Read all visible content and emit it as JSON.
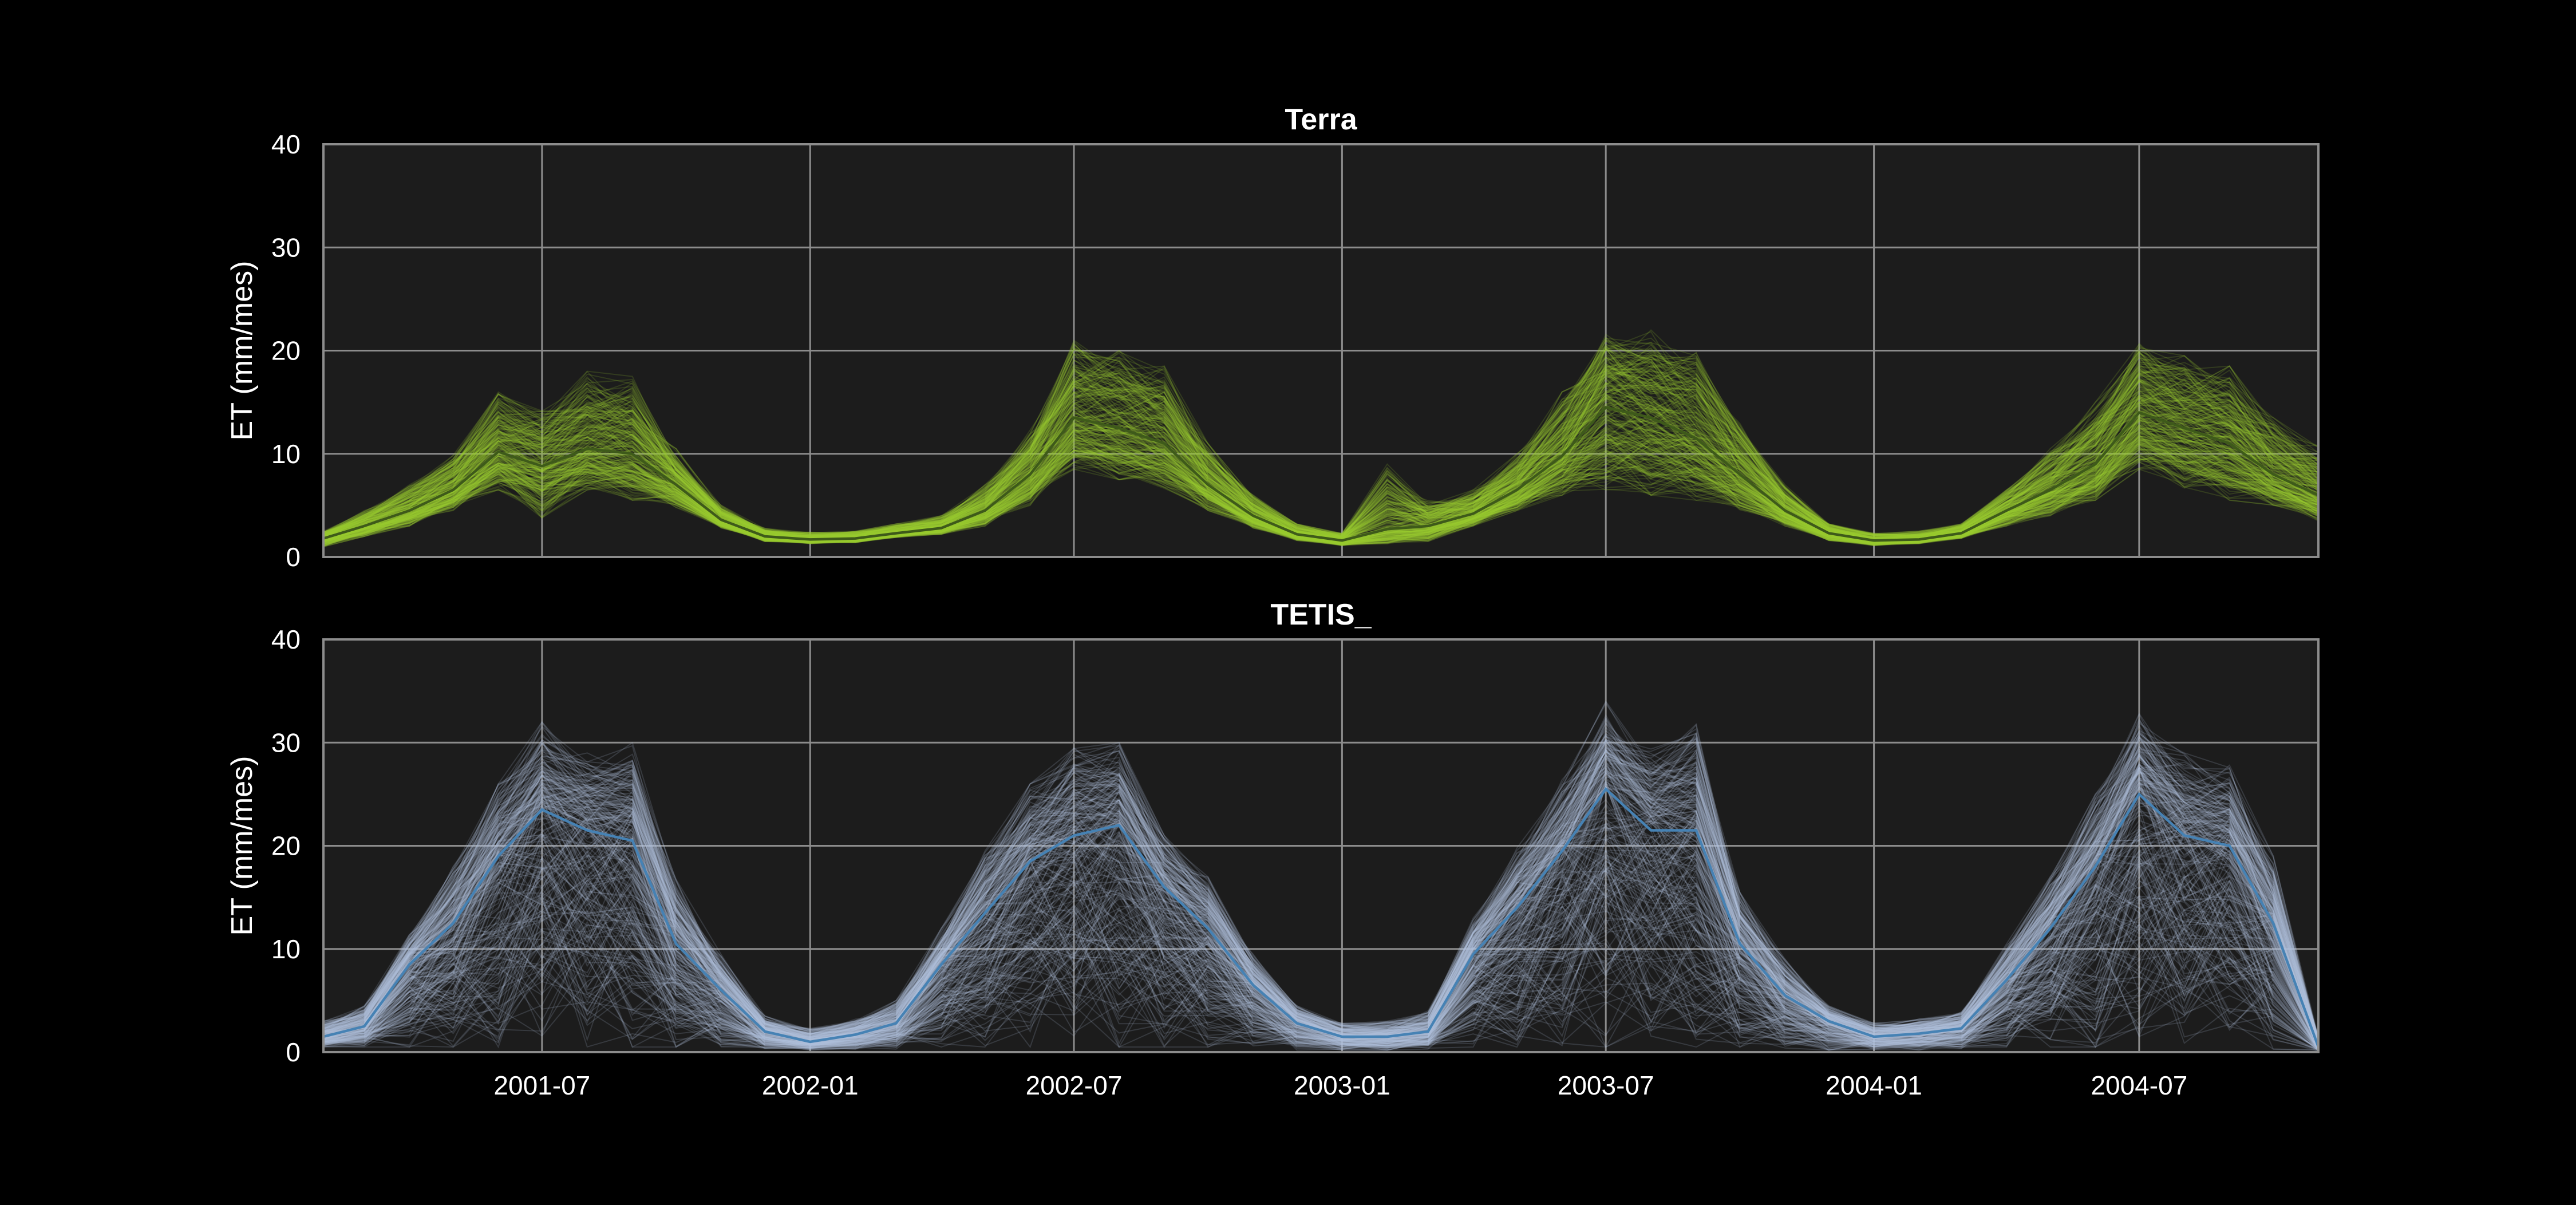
{
  "chart_data": [
    {
      "type": "line",
      "title": "Terra",
      "ylabel": "ET (mm/mes)",
      "xlabel": "",
      "ylim": [
        0,
        40
      ],
      "yticks": [
        0,
        10,
        20,
        30,
        40
      ],
      "xlim": [
        "2001-02-15",
        "2004-11-15"
      ],
      "xticks": [
        "2001-07",
        "2002-01",
        "2002-07",
        "2003-01",
        "2003-07",
        "2004-01",
        "2004-07"
      ],
      "show_xtick_labels": false,
      "grid": true,
      "colors": {
        "ensemble": "#9acd32",
        "mean": "#3e5a1a",
        "background": "#1c1c1c",
        "grid": "#8c8c8c"
      },
      "ensemble_description": "many overlapping simulation traces (envelope shown by low/high bounds)",
      "x": [
        "2001-02",
        "2001-03",
        "2001-04",
        "2001-05",
        "2001-06",
        "2001-07",
        "2001-08",
        "2001-09",
        "2001-10",
        "2001-11",
        "2001-12",
        "2002-01",
        "2002-02",
        "2002-03",
        "2002-04",
        "2002-05",
        "2002-06",
        "2002-07",
        "2002-08",
        "2002-09",
        "2002-10",
        "2002-11",
        "2002-12",
        "2003-01",
        "2003-02",
        "2003-03",
        "2003-04",
        "2003-05",
        "2003-06",
        "2003-07",
        "2003-08",
        "2003-09",
        "2003-10",
        "2003-11",
        "2003-12",
        "2004-01",
        "2004-02",
        "2004-03",
        "2004-04",
        "2004-05",
        "2004-06",
        "2004-07",
        "2004-08",
        "2004-09",
        "2004-10",
        "2004-11"
      ],
      "series": [
        {
          "role": "mean",
          "values": [
            1.8,
            3.0,
            4.5,
            6.5,
            10.2,
            8.8,
            10.5,
            10.0,
            7.0,
            3.6,
            2.0,
            1.7,
            1.8,
            2.3,
            2.8,
            4.5,
            8.0,
            13.5,
            12.5,
            11.0,
            7.0,
            4.0,
            2.2,
            1.6,
            2.7,
            3.0,
            4.2,
            6.5,
            9.8,
            14.5,
            13.5,
            11.5,
            8.0,
            4.5,
            2.3,
            1.6,
            1.7,
            2.3,
            4.5,
            6.5,
            9.0,
            14.0,
            12.5,
            11.0,
            8.0,
            6.0
          ]
        },
        {
          "role": "low",
          "values": [
            1.0,
            2.0,
            3.0,
            4.5,
            6.5,
            3.8,
            6.5,
            5.5,
            4.8,
            2.8,
            1.5,
            1.3,
            1.4,
            1.9,
            2.2,
            3.0,
            5.0,
            8.5,
            7.5,
            6.5,
            4.5,
            2.8,
            1.6,
            1.1,
            1.3,
            1.5,
            3.0,
            4.5,
            6.0,
            6.5,
            6.0,
            5.5,
            4.5,
            3.0,
            1.6,
            1.1,
            1.3,
            1.8,
            3.0,
            4.0,
            5.5,
            8.5,
            6.5,
            5.5,
            5.0,
            3.5
          ]
        },
        {
          "role": "high",
          "values": [
            2.5,
            4.5,
            7.0,
            10.0,
            16.0,
            14.5,
            18.0,
            17.5,
            10.5,
            5.0,
            2.8,
            2.4,
            2.5,
            3.2,
            4.0,
            7.0,
            12.5,
            21.0,
            20.0,
            18.5,
            11.0,
            6.0,
            3.2,
            2.3,
            9.0,
            5.5,
            6.5,
            10.0,
            16.0,
            22.5,
            22.0,
            20.0,
            13.0,
            7.0,
            3.2,
            2.3,
            2.5,
            3.2,
            6.5,
            10.5,
            15.0,
            21.0,
            19.5,
            18.5,
            13.5,
            11.0
          ]
        }
      ]
    },
    {
      "type": "line",
      "title": "TETIS_",
      "ylabel": "ET (mm/mes)",
      "xlabel": "",
      "ylim": [
        0,
        40
      ],
      "yticks": [
        0,
        10,
        20,
        30,
        40
      ],
      "xlim": [
        "2001-02-15",
        "2004-11-15"
      ],
      "xticks": [
        "2001-07",
        "2002-01",
        "2002-07",
        "2003-01",
        "2003-07",
        "2004-01",
        "2004-07"
      ],
      "show_xtick_labels": true,
      "grid": true,
      "colors": {
        "ensemble": "#b0c4de",
        "mean": "#4682b4",
        "background": "#1c1c1c",
        "grid": "#8c8c8c"
      },
      "ensemble_description": "many overlapping simulation traces (envelope shown by low/high bounds)",
      "x": [
        "2001-02",
        "2001-03",
        "2001-04",
        "2001-05",
        "2001-06",
        "2001-07",
        "2001-08",
        "2001-09",
        "2001-10",
        "2001-11",
        "2001-12",
        "2002-01",
        "2002-02",
        "2002-03",
        "2002-04",
        "2002-05",
        "2002-06",
        "2002-07",
        "2002-08",
        "2002-09",
        "2002-10",
        "2002-11",
        "2002-12",
        "2003-01",
        "2003-02",
        "2003-03",
        "2003-04",
        "2003-05",
        "2003-06",
        "2003-07",
        "2003-08",
        "2003-09",
        "2003-10",
        "2003-11",
        "2003-12",
        "2004-01",
        "2004-02",
        "2004-03",
        "2004-04",
        "2004-05",
        "2004-06",
        "2004-07",
        "2004-08",
        "2004-09",
        "2004-10",
        "2004-11"
      ],
      "series": [
        {
          "role": "mean",
          "values": [
            1.5,
            2.5,
            8.5,
            12.5,
            19.0,
            23.5,
            21.5,
            20.5,
            10.5,
            6.0,
            2.0,
            1.0,
            1.7,
            2.8,
            8.5,
            13.5,
            18.5,
            21.0,
            22.0,
            16.0,
            12.0,
            6.5,
            2.8,
            1.5,
            1.5,
            2.0,
            9.5,
            14.0,
            19.5,
            25.5,
            21.5,
            21.5,
            10.5,
            5.5,
            3.0,
            1.5,
            1.8,
            2.3,
            7.0,
            12.0,
            18.0,
            25.0,
            21.0,
            20.0,
            12.5,
            0.5
          ]
        },
        {
          "role": "low",
          "values": [
            0.5,
            0.5,
            0.5,
            0.5,
            0.5,
            0.5,
            0.5,
            0.5,
            0.5,
            0.3,
            0.2,
            0.2,
            0.3,
            0.3,
            0.5,
            0.5,
            0.5,
            0.5,
            0.5,
            0.5,
            0.5,
            0.3,
            0.2,
            0.2,
            0.2,
            0.3,
            0.5,
            0.5,
            0.5,
            0.5,
            0.5,
            0.5,
            0.5,
            0.3,
            0.2,
            0.2,
            0.2,
            0.3,
            0.5,
            0.5,
            0.5,
            0.5,
            0.5,
            0.5,
            0.3,
            0.1
          ]
        },
        {
          "role": "high",
          "values": [
            3.0,
            4.5,
            11.5,
            18.0,
            26.0,
            32.0,
            29.0,
            30.0,
            17.0,
            9.5,
            3.5,
            2.3,
            3.2,
            5.0,
            12.0,
            19.5,
            26.0,
            29.5,
            30.0,
            21.0,
            17.0,
            9.5,
            4.5,
            2.8,
            3.0,
            4.0,
            13.0,
            20.0,
            26.5,
            34.0,
            30.0,
            32.0,
            15.5,
            9.0,
            4.5,
            2.8,
            3.2,
            4.0,
            10.5,
            17.0,
            25.0,
            33.0,
            29.0,
            28.0,
            19.0,
            1.5
          ]
        }
      ]
    }
  ]
}
